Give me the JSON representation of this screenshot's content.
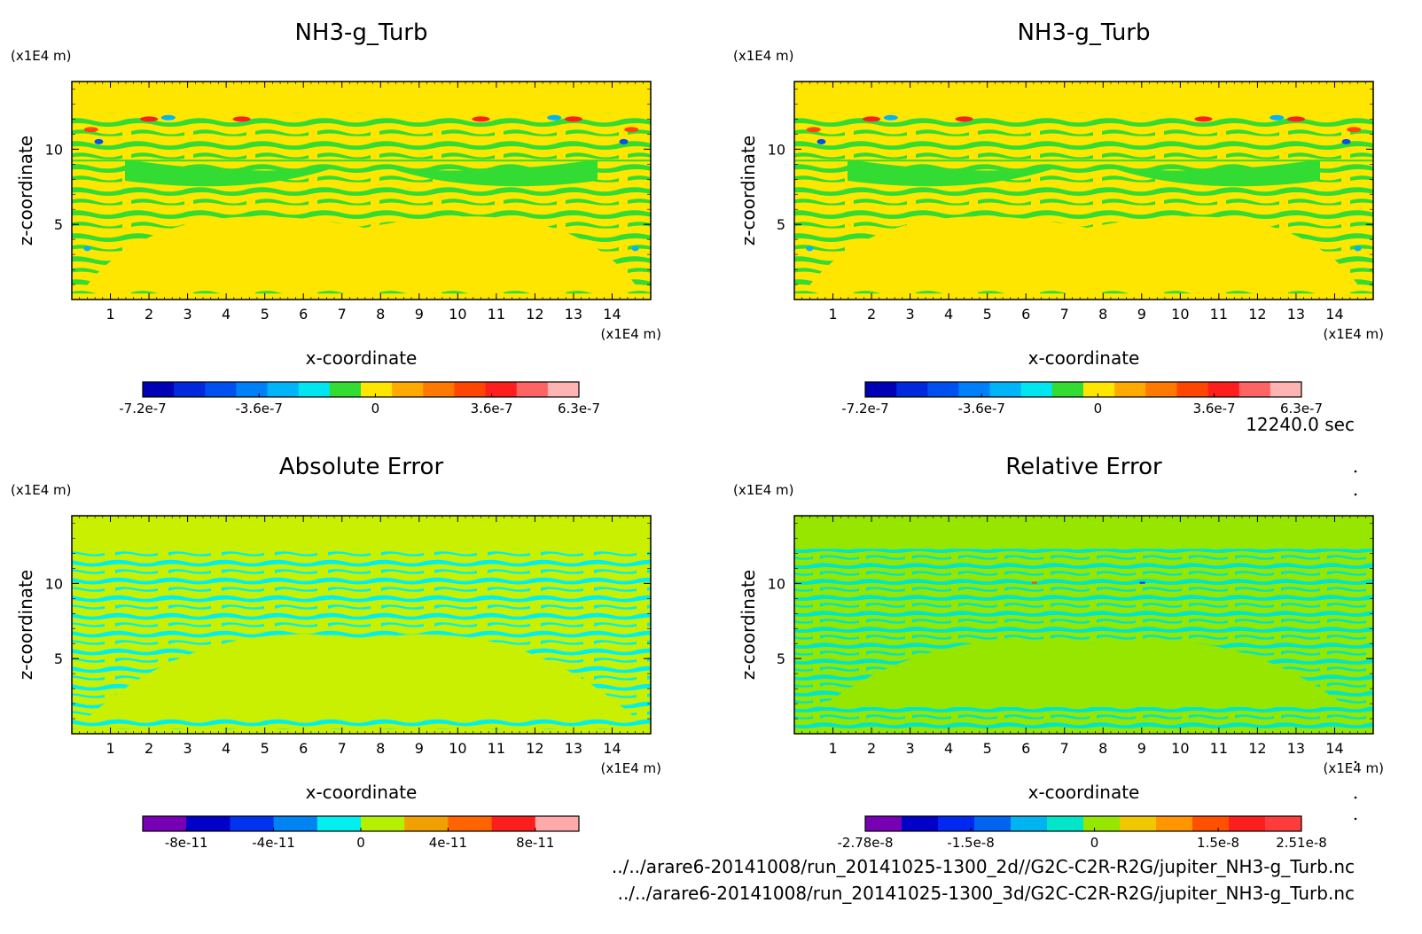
{
  "time_label": "12240.0 sec",
  "footer_lines": [
    "../../arare6-20141008/run_20141025-1300_2d//G2C-C2R-R2G/jupiter_NH3-g_Turb.nc",
    "../../arare6-20141008/run_20141025-1300_3d/G2C-C2R-R2G/jupiter_NH3-g_Turb.nc"
  ],
  "chart_data": [
    {
      "type": "heatmap",
      "title": "NH3-g_Turb",
      "xlabel": "x-coordinate",
      "ylabel": "z-coordinate",
      "x_unit": "(x1E4 m)",
      "y_unit": "(x1E4 m)",
      "xlim": [
        0,
        15
      ],
      "ylim": [
        0,
        14.5
      ],
      "xticks": [
        "1",
        "2",
        "3",
        "4",
        "5",
        "6",
        "7",
        "8",
        "9",
        "10",
        "11",
        "12",
        "13",
        "14"
      ],
      "yticks": [
        "5",
        "10"
      ],
      "field": "nh3_turb",
      "colorbar": {
        "colors": [
          "#0000b4",
          "#0028dc",
          "#0050f0",
          "#0080f8",
          "#00b4f8",
          "#00e6f0",
          "#32dc32",
          "#ffe600",
          "#ffaa00",
          "#ff7800",
          "#ff4600",
          "#ff1e1e",
          "#ff6464",
          "#ffb4b4"
        ],
        "labels": [
          "-7.2e-7",
          "-3.6e-7",
          "0",
          "3.6e-7",
          "6.3e-7"
        ],
        "label_positions": [
          -7.2e-07,
          -3.6e-07,
          0,
          3.6e-07,
          6.3e-07
        ],
        "range": [
          -7.2e-07,
          6.3e-07
        ]
      }
    },
    {
      "type": "heatmap",
      "title": "NH3-g_Turb",
      "xlabel": "x-coordinate",
      "ylabel": "z-coordinate",
      "x_unit": "(x1E4 m)",
      "y_unit": "(x1E4 m)",
      "xlim": [
        0,
        15
      ],
      "ylim": [
        0,
        14.5
      ],
      "xticks": [
        "1",
        "2",
        "3",
        "4",
        "5",
        "6",
        "7",
        "8",
        "9",
        "10",
        "11",
        "12",
        "13",
        "14"
      ],
      "yticks": [
        "5",
        "10"
      ],
      "field": "nh3_turb",
      "colorbar": {
        "colors": [
          "#0000b4",
          "#0028dc",
          "#0050f0",
          "#0080f8",
          "#00b4f8",
          "#00e6f0",
          "#32dc32",
          "#ffe600",
          "#ffaa00",
          "#ff7800",
          "#ff4600",
          "#ff1e1e",
          "#ff6464",
          "#ffb4b4"
        ],
        "labels": [
          "-7.2e-7",
          "-3.6e-7",
          "0",
          "3.6e-7",
          "6.3e-7"
        ],
        "label_positions": [
          -7.2e-07,
          -3.6e-07,
          0,
          3.6e-07,
          6.3e-07
        ],
        "range": [
          -7.2e-07,
          6.3e-07
        ]
      }
    },
    {
      "type": "heatmap",
      "title": "Absolute Error",
      "xlabel": "x-coordinate",
      "ylabel": "z-coordinate",
      "x_unit": "(x1E4 m)",
      "y_unit": "(x1E4 m)",
      "xlim": [
        0,
        15
      ],
      "ylim": [
        0,
        14.5
      ],
      "xticks": [
        "1",
        "2",
        "3",
        "4",
        "5",
        "6",
        "7",
        "8",
        "9",
        "10",
        "11",
        "12",
        "13",
        "14"
      ],
      "yticks": [
        "5",
        "10"
      ],
      "field": "abs_error",
      "colorbar": {
        "colors": [
          "#7800b4",
          "#0000c8",
          "#0032f0",
          "#0082f0",
          "#00f0f0",
          "#b4f000",
          "#f0a000",
          "#ff6400",
          "#ff1e1e",
          "#ffaaaa"
        ],
        "labels": [
          "-8e-11",
          "-4e-11",
          "0",
          "4e-11",
          "8e-11"
        ],
        "label_positions": [
          -8e-11,
          -4e-11,
          0,
          4e-11,
          8e-11
        ],
        "range": [
          -1e-10,
          1e-10
        ]
      }
    },
    {
      "type": "heatmap",
      "title": "Relative Error",
      "xlabel": "x-coordinate",
      "ylabel": "z-coordinate",
      "x_unit": "(x1E4 m)",
      "y_unit": "(x1E4 m)",
      "xlim": [
        0,
        15
      ],
      "ylim": [
        0,
        14.5
      ],
      "xticks": [
        "1",
        "2",
        "3",
        "4",
        "5",
        "6",
        "7",
        "8",
        "9",
        "10",
        "11",
        "12",
        "13",
        "14"
      ],
      "yticks": [
        "5",
        "10"
      ],
      "field": "rel_error",
      "colorbar": {
        "colors": [
          "#7800b4",
          "#0000c8",
          "#0028f0",
          "#0064f0",
          "#00b4f0",
          "#00e6c8",
          "#96e600",
          "#f0c800",
          "#ff9600",
          "#ff5000",
          "#ff1e1e",
          "#ff3c3c"
        ],
        "labels": [
          "-2.78e-8",
          "-1.5e-8",
          "0",
          "1.5e-8",
          "2.51e-8"
        ],
        "label_positions": [
          -2.78e-08,
          -1.5e-08,
          0,
          1.5e-08,
          2.51e-08
        ],
        "range": [
          -2.78e-08,
          2.51e-08
        ]
      }
    }
  ]
}
